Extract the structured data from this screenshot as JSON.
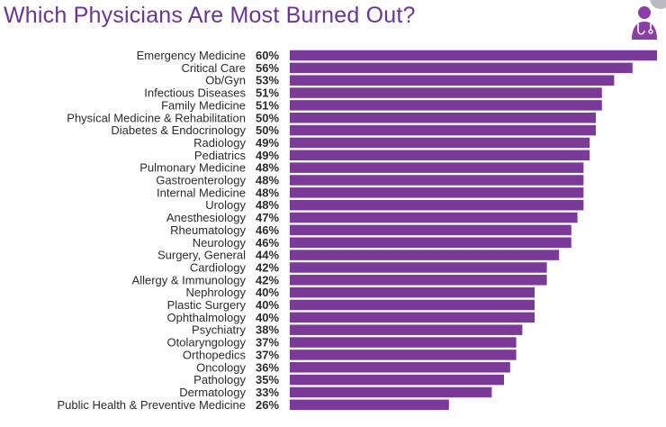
{
  "title": "Which Physicians Are Most Burned Out?",
  "logo_icon": "physician-stethoscope-icon",
  "colors": {
    "bar": "#7b3a98",
    "title": "#6a3593",
    "text": "#2b2b2b",
    "logo": "#8a3fa6"
  },
  "chart_data": {
    "type": "bar",
    "orientation": "horizontal",
    "title": "Which Physicians Are Most Burned Out?",
    "xlabel": "",
    "ylabel": "",
    "unit": "%",
    "xlim": [
      0,
      60
    ],
    "categories": [
      "Emergency Medicine",
      "Critical Care",
      "Ob/Gyn",
      "Infectious Diseases",
      "Family Medicine",
      "Physical Medicine & Rehabilitation",
      "Diabetes & Endocrinology",
      "Radiology",
      "Pediatrics",
      "Pulmonary Medicine",
      "Gastroenterology",
      "Internal Medicine",
      "Urology",
      "Anesthesiology",
      "Rheumatology",
      "Neurology",
      "Surgery, General",
      "Cardiology",
      "Allergy & Immunology",
      "Nephrology",
      "Plastic Surgery",
      "Ophthalmology",
      "Psychiatry",
      "Otolaryngology",
      "Orthopedics",
      "Oncology",
      "Pathology",
      "Dermatology",
      "Public Health & Preventive Medicine"
    ],
    "values": [
      60,
      56,
      53,
      51,
      51,
      50,
      50,
      49,
      49,
      48,
      48,
      48,
      48,
      47,
      46,
      46,
      44,
      42,
      42,
      40,
      40,
      40,
      38,
      37,
      37,
      36,
      35,
      33,
      26
    ],
    "value_labels": [
      "60%",
      "56%",
      "53%",
      "51%",
      "51%",
      "50%",
      "50%",
      "49%",
      "49%",
      "48%",
      "48%",
      "48%",
      "48%",
      "47%",
      "46%",
      "46%",
      "44%",
      "42%",
      "42%",
      "40%",
      "40%",
      "40%",
      "38%",
      "37%",
      "37%",
      "36%",
      "35%",
      "33%",
      "26%"
    ],
    "grid": false,
    "legend": "none"
  }
}
